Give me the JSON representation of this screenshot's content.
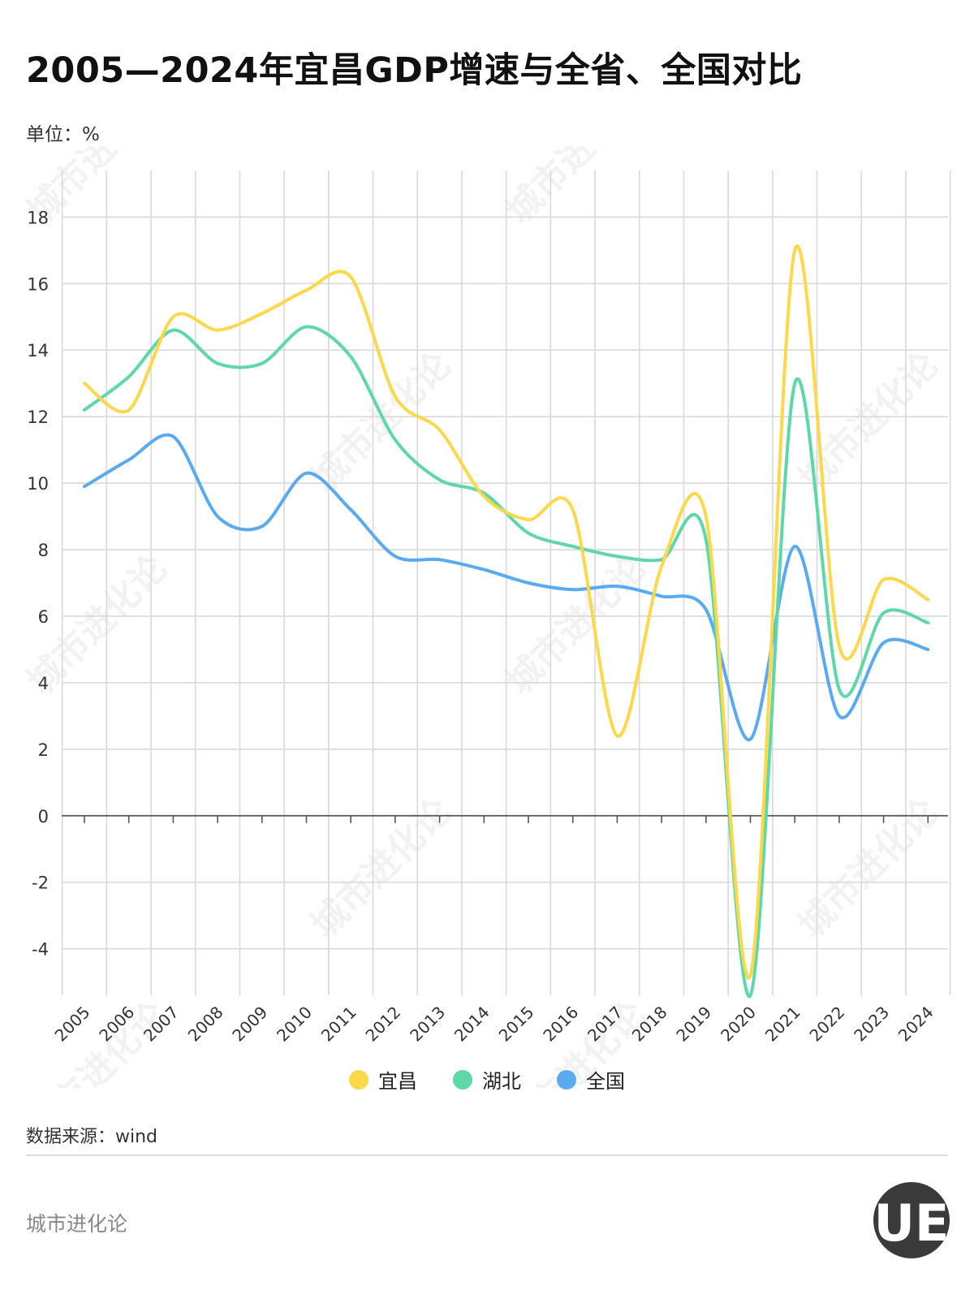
{
  "title": "2005—2024年宜昌GDP增速与全省、全国对比",
  "unit": "单位：%",
  "source": "数据来源：wind",
  "footer": "城市进化论",
  "watermark": "城市进化论",
  "logo_text": "UE",
  "colors": {
    "yichang": "#fcd84a",
    "hubei": "#5ed8a8",
    "national": "#5aaaf0",
    "grid": "#d9d9d9",
    "axis": "#555555"
  },
  "chart_data": {
    "type": "line",
    "smooth": true,
    "x": [
      "2005",
      "2006",
      "2007",
      "2008",
      "2009",
      "2010",
      "2011",
      "2012",
      "2013",
      "2014",
      "2015",
      "2016",
      "2017",
      "2018",
      "2019",
      "2020",
      "2021",
      "2022",
      "2023",
      "2024"
    ],
    "ylim": [
      -5.4,
      19.4
    ],
    "yticks": [
      -4,
      -2,
      0,
      2,
      4,
      6,
      8,
      10,
      12,
      14,
      16,
      18
    ],
    "grid": true,
    "legend_position": "bottom",
    "series": [
      {
        "name": "宜昌",
        "color": "#fcd84a",
        "values": [
          13.0,
          12.2,
          15.0,
          14.6,
          15.1,
          15.8,
          16.2,
          12.6,
          11.6,
          9.6,
          8.9,
          9.2,
          2.4,
          7.5,
          9.0,
          -4.8,
          17.0,
          5.1,
          7.1,
          6.5
        ]
      },
      {
        "name": "湖北",
        "color": "#5ed8a8",
        "values": [
          12.2,
          13.2,
          14.6,
          13.6,
          13.6,
          14.7,
          13.8,
          11.3,
          10.1,
          9.7,
          8.5,
          8.1,
          7.8,
          7.7,
          8.3,
          -5.4,
          13.0,
          3.8,
          6.1,
          5.8
        ]
      },
      {
        "name": "全国",
        "color": "#5aaaf0",
        "values": [
          9.9,
          10.7,
          11.4,
          9.0,
          8.7,
          10.3,
          9.2,
          7.8,
          7.7,
          7.4,
          7.0,
          6.8,
          6.9,
          6.6,
          6.2,
          2.3,
          8.1,
          3.0,
          5.2,
          5.0
        ]
      }
    ]
  }
}
